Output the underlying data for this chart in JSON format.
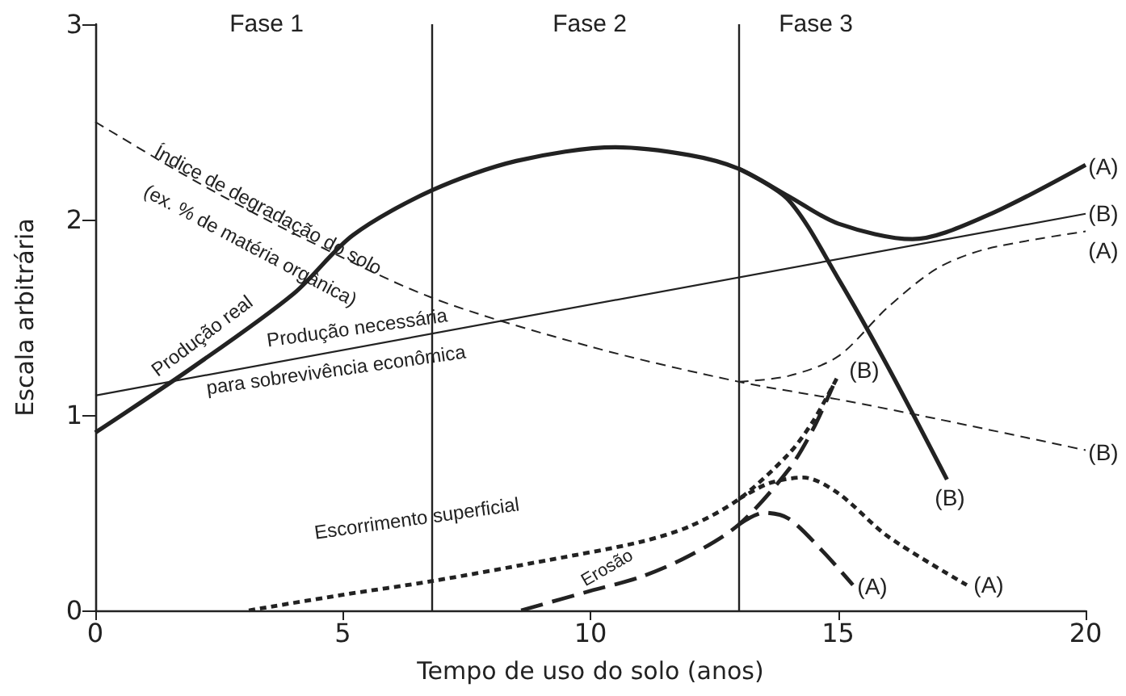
{
  "chart_data": {
    "type": "line",
    "xlabel": "Tempo de uso do solo (anos)",
    "ylabel": "Escala arbitrária",
    "xlim": [
      0,
      20
    ],
    "ylim": [
      0,
      3
    ],
    "xticks": [
      0,
      5,
      10,
      15,
      20
    ],
    "yticks": [
      0,
      1,
      2,
      3
    ],
    "grid": false,
    "marker": "none",
    "series": [
      {
        "color": "#222222",
        "line_style": "solid",
        "x": [
          0,
          2,
          4,
          5.2,
          6.8,
          8.5,
          10.5,
          12,
          13,
          14,
          15,
          16.5,
          18,
          20
        ],
        "values": [
          0.91,
          1.25,
          1.62,
          1.92,
          2.15,
          2.3,
          2.37,
          2.33,
          2.26,
          2.12,
          1.98,
          1.9,
          2.02,
          2.28
        ]
      },
      {
        "color": "#222222",
        "line_style": "solid",
        "x": [
          13,
          14,
          15,
          16,
          17.2
        ],
        "values": [
          2.26,
          2.1,
          1.7,
          1.25,
          0.67
        ]
      },
      {
        "color": "#222222",
        "line_style": "solid",
        "x": [
          0,
          20
        ],
        "values": [
          1.1,
          2.03
        ]
      },
      {
        "color": "#222222",
        "line_style": "dashed",
        "x": [
          0,
          2,
          4,
          6.8,
          10,
          13,
          15,
          17,
          20
        ],
        "values": [
          2.5,
          2.2,
          1.93,
          1.6,
          1.35,
          1.17,
          1.08,
          0.98,
          0.82
        ]
      },
      {
        "color": "#222222",
        "line_style": "dashed",
        "x": [
          13,
          14,
          15,
          16,
          17,
          18,
          20
        ],
        "values": [
          1.17,
          1.2,
          1.3,
          1.55,
          1.75,
          1.85,
          1.94
        ]
      },
      {
        "color": "#222222",
        "line_style": "dotted",
        "x": [
          3.1,
          5,
          6.8,
          9.2,
          11,
          12,
          13,
          14,
          14.5,
          15
        ],
        "values": [
          0,
          0.08,
          0.15,
          0.26,
          0.35,
          0.43,
          0.57,
          0.8,
          0.97,
          1.2
        ]
      },
      {
        "color": "#222222",
        "line_style": "dotted",
        "x": [
          13,
          13.6,
          14.3,
          15,
          16,
          17.6
        ],
        "values": [
          0.57,
          0.65,
          0.68,
          0.6,
          0.38,
          0.13
        ]
      },
      {
        "color": "#222222",
        "line_style": "dashed",
        "x": [
          8.6,
          10,
          11,
          12,
          13,
          14,
          14.5,
          14.9
        ],
        "values": [
          0,
          0.1,
          0.17,
          0.28,
          0.44,
          0.72,
          0.93,
          1.15
        ]
      },
      {
        "color": "#222222",
        "line_style": "dashed",
        "x": [
          13,
          13.5,
          14,
          14.7,
          15.3
        ],
        "values": [
          0.44,
          0.5,
          0.47,
          0.3,
          0.13
        ]
      }
    ],
    "ref_lines": [
      {
        "axis": "x",
        "value": 6.8,
        "color": "#222222"
      },
      {
        "axis": "x",
        "value": 13,
        "color": "#222222"
      }
    ],
    "annotations": [
      "Fase 1",
      "Fase 2",
      "Fase 3",
      "Índice de degradação do solo",
      "(ex. % de matéria orgânica)",
      "Produção real",
      "Produção necessária",
      "para sobrevivência econômica",
      "Escorrimento superficial",
      "Erosão",
      "(A)",
      "(B)",
      "(A)",
      "(B)",
      "(B)",
      "(B)",
      "(A)",
      "(A)"
    ]
  }
}
